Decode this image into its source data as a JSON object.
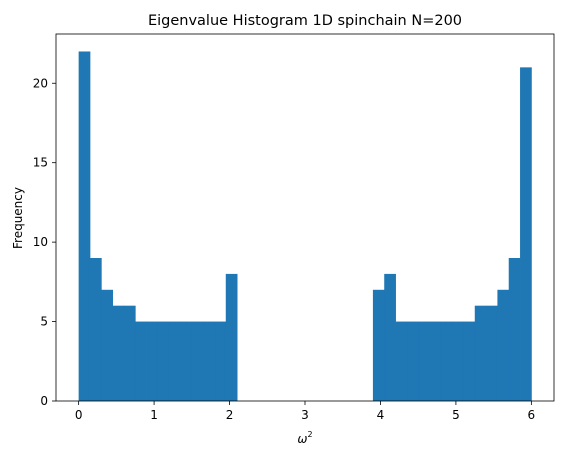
{
  "chart_data": {
    "type": "bar",
    "title": "Eigenvalue Histogram 1D spinchain N=200",
    "xlabel": "ω",
    "xlabel_superscript": "2",
    "ylabel": "Frequency",
    "xlim": [
      -0.3,
      6.3
    ],
    "ylim": [
      0,
      23.1
    ],
    "xticks": [
      0,
      1,
      2,
      3,
      4,
      5,
      6
    ],
    "yticks": [
      0,
      5,
      10,
      15,
      20
    ],
    "grid": false,
    "bar_color": "#1f77b4",
    "bin_edges": [
      0.0,
      0.15,
      0.3,
      0.45,
      0.6,
      0.75,
      0.9,
      1.05,
      1.2,
      1.35,
      1.5,
      1.65,
      1.8,
      1.95,
      2.1,
      2.25,
      2.4,
      2.55,
      2.7,
      2.85,
      3.0,
      3.15,
      3.3,
      3.45,
      3.6,
      3.75,
      3.9,
      4.05,
      4.2,
      4.35,
      4.5,
      4.65,
      4.8,
      4.95,
      5.1,
      5.25,
      5.4,
      5.55,
      5.7,
      5.85,
      6.0
    ],
    "values": [
      22,
      9,
      7,
      6,
      6,
      5,
      5,
      5,
      5,
      5,
      5,
      5,
      5,
      8,
      0,
      0,
      0,
      0,
      0,
      0,
      0,
      0,
      0,
      0,
      0,
      0,
      7,
      8,
      5,
      5,
      5,
      5,
      5,
      5,
      5,
      6,
      6,
      7,
      9,
      21
    ]
  }
}
